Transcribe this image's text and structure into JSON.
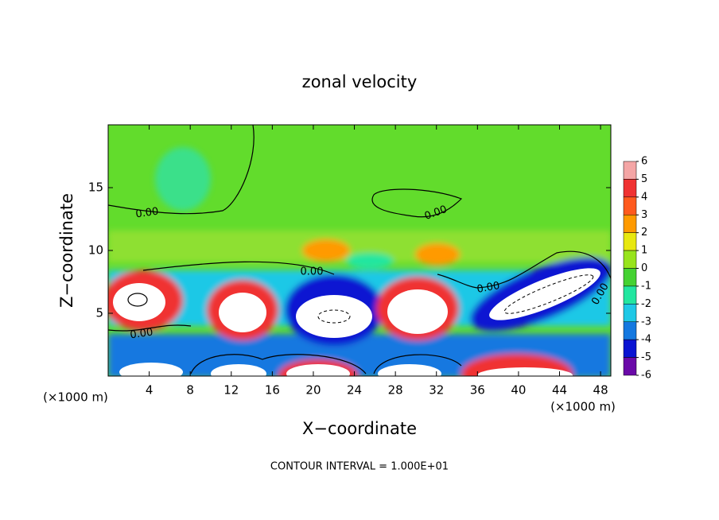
{
  "chart_data": {
    "type": "contour",
    "title": "zonal velocity",
    "x_label": "X−coordinate",
    "y_label": "Z−coordinate",
    "x_unit_left": "(×1000 m)",
    "x_unit_right": "(×1000 m)",
    "footer": "CONTOUR INTERVAL = 1.000E+01",
    "xlim": [
      0,
      49
    ],
    "ylim": [
      0,
      20
    ],
    "xticks": [
      4,
      8,
      12,
      16,
      20,
      24,
      28,
      32,
      36,
      40,
      44,
      48
    ],
    "yticks": [
      5,
      10,
      15
    ],
    "contour_labels": [
      "0.00",
      "0.00",
      "0.00",
      "0.00",
      "0.00",
      "0.00"
    ],
    "colorbar": {
      "levels": [
        6,
        5,
        4,
        3,
        2,
        1,
        0,
        -1,
        -2,
        -3,
        -4,
        -5,
        -6
      ],
      "colors": [
        "#f4a6a6",
        "#f03232",
        "#ff5a1e",
        "#ff9a00",
        "#e8e810",
        "#98e41c",
        "#44d232",
        "#22e6a0",
        "#1ec8e6",
        "#1478e0",
        "#0a14d2",
        "#6a0aa8"
      ]
    }
  }
}
